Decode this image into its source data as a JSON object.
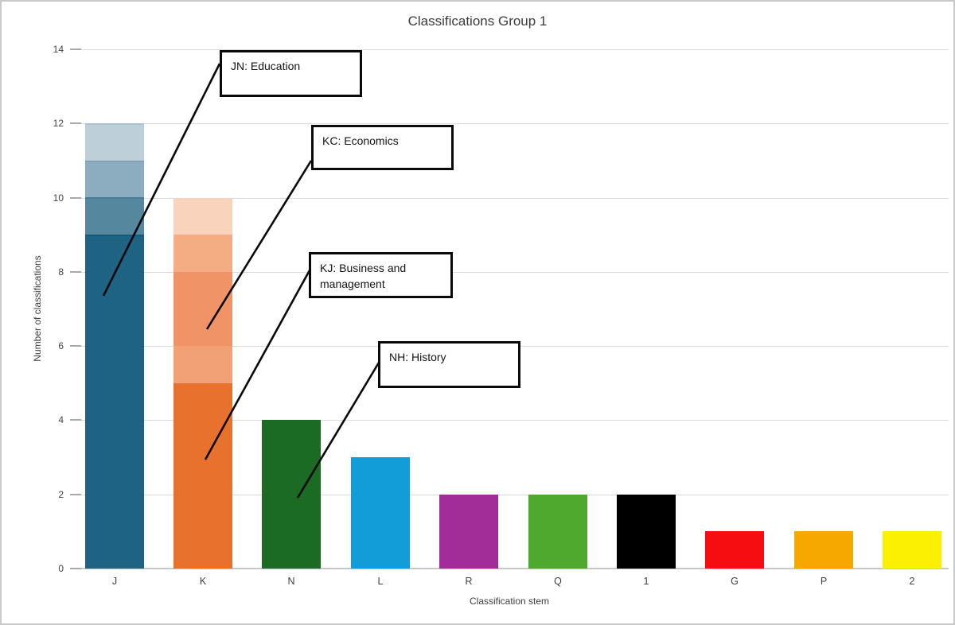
{
  "chart_data": {
    "type": "bar",
    "stacked": true,
    "title": "Classifications Group 1",
    "xlabel": "Classification stem",
    "ylabel": "Number of classifications",
    "ylim": [
      0,
      14
    ],
    "yticks": [
      0,
      2,
      4,
      6,
      8,
      10,
      12,
      14
    ],
    "grid": "horizontal",
    "legend": "none",
    "categories": [
      "J",
      "K",
      "N",
      "L",
      "R",
      "Q",
      "1",
      "G",
      "P",
      "2"
    ],
    "totals": [
      12,
      10,
      4,
      3,
      2,
      2,
      2,
      1,
      1,
      1
    ],
    "bars": [
      {
        "category": "J",
        "segments": [
          {
            "value": 9,
            "color": "#1e6384",
            "top_edge": "#175a78"
          },
          {
            "value": 1,
            "color": "#55879f",
            "top_edge": "#4b7b94"
          },
          {
            "value": 1,
            "color": "#8cadc0",
            "top_edge": "#7fa2b6"
          },
          {
            "value": 1,
            "color": "#bdd0da",
            "top_edge": "#adc4d0"
          }
        ]
      },
      {
        "category": "K",
        "segments": [
          {
            "value": 5,
            "color": "#e8722d"
          },
          {
            "value": 1,
            "color": "#f2a176"
          },
          {
            "value": 2,
            "color": "#f09468"
          },
          {
            "value": 1,
            "color": "#f4ad82"
          },
          {
            "value": 1,
            "color": "#f9d3bc"
          }
        ]
      },
      {
        "category": "N",
        "segments": [
          {
            "value": 4,
            "color": "#1c6b24"
          }
        ]
      },
      {
        "category": "L",
        "segments": [
          {
            "value": 3,
            "color": "#129dd8"
          }
        ]
      },
      {
        "category": "R",
        "segments": [
          {
            "value": 2,
            "color": "#a02d98"
          }
        ]
      },
      {
        "category": "Q",
        "segments": [
          {
            "value": 2,
            "color": "#4fa92f"
          }
        ]
      },
      {
        "category": "1",
        "segments": [
          {
            "value": 2,
            "color": "#000000"
          }
        ]
      },
      {
        "category": "G",
        "segments": [
          {
            "value": 1,
            "color": "#f50d11"
          }
        ]
      },
      {
        "category": "P",
        "segments": [
          {
            "value": 1,
            "color": "#f6a801"
          }
        ]
      },
      {
        "category": "2",
        "segments": [
          {
            "value": 1,
            "color": "#faf000"
          }
        ]
      }
    ],
    "annotations": [
      {
        "id": "jn",
        "label": "JN: Education",
        "box": {
          "x": 274,
          "y": 61,
          "w": 179,
          "h": 59
        },
        "line": {
          "x1": 274,
          "y1": 78,
          "x2": 128,
          "y2": 370
        }
      },
      {
        "id": "kc",
        "label": "KC: Economics",
        "box": {
          "x": 389,
          "y": 155,
          "w": 179,
          "h": 57
        },
        "line": {
          "x1": 389,
          "y1": 200,
          "x2": 258,
          "y2": 412
        }
      },
      {
        "id": "kj",
        "label": "KJ: Business and management",
        "box": {
          "x": 386,
          "y": 315,
          "w": 181,
          "h": 58
        },
        "line": {
          "x1": 387,
          "y1": 338,
          "x2": 256,
          "y2": 576
        }
      },
      {
        "id": "nh",
        "label": "NH: History",
        "box": {
          "x": 473,
          "y": 427,
          "w": 179,
          "h": 59
        },
        "line": {
          "x1": 474,
          "y1": 454,
          "x2": 372,
          "y2": 624
        }
      }
    ],
    "annotation_line_color": "#0a0a0a",
    "gridline_color": "#dadada"
  }
}
